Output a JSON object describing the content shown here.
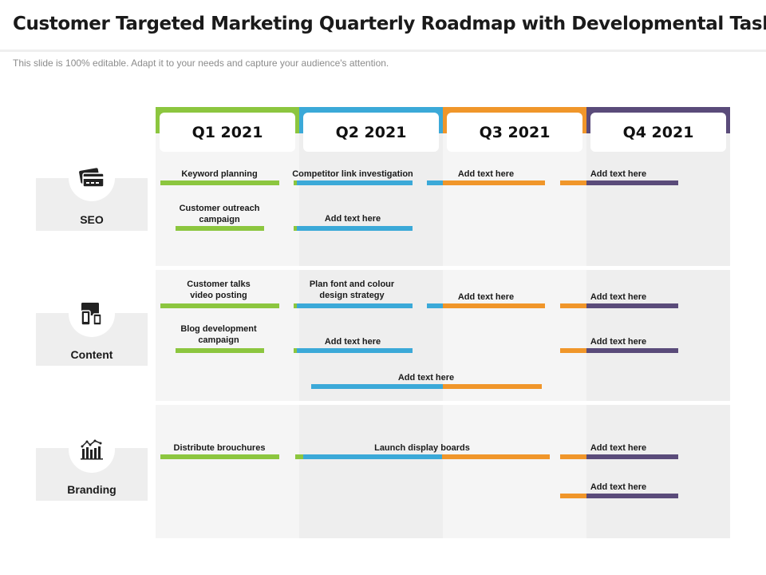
{
  "title": "Customer Targeted Marketing Quarterly Roadmap with Developmental Tasks",
  "subtitle": "This slide is 100% editable. Adapt it to your needs and capture your audience's attention.",
  "colors": {
    "q1": "#8cc63f",
    "q2": "#3ba9d8",
    "q3": "#f0962a",
    "q4": "#5a4b7a",
    "panel": "#f5f5f5",
    "panelAlt": "#eeeeee"
  },
  "quarters": [
    "Q1 2021",
    "Q2 2021",
    "Q3 2021",
    "Q4 2021"
  ],
  "categories": [
    {
      "label": "SEO",
      "icon": "credit-card-icon"
    },
    {
      "label": "Content",
      "icon": "devices-icon"
    },
    {
      "label": "Branding",
      "icon": "bar-chart-icon"
    }
  ],
  "tasks": [
    "Keyword planning",
    "Competitor link investigation",
    "Add text here",
    "Add text here",
    "Customer outreach\ncampaign",
    "Add text here",
    "Customer talks\nvideo posting",
    "Plan font and colour\ndesign strategy",
    "Add text here",
    "Add text here",
    "Blog development\ncampaign",
    "Add text here",
    "Add text here",
    "Add text here",
    "Distribute brouchures",
    "Launch display boards",
    "Add text here",
    "Add text here"
  ]
}
